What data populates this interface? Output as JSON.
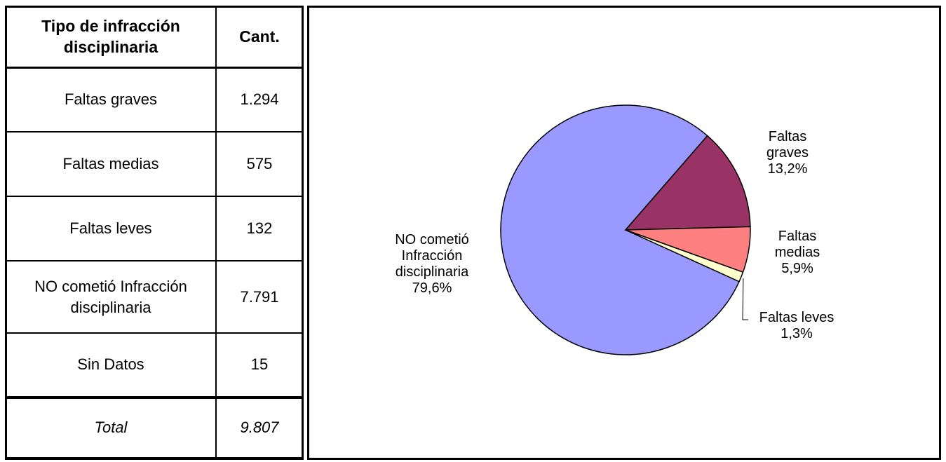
{
  "table": {
    "headers": [
      "Tipo de infracción disciplinaria",
      "Cant."
    ],
    "rows": [
      {
        "label": "Faltas graves",
        "value": "1.294"
      },
      {
        "label": "Faltas medias",
        "value": "575"
      },
      {
        "label": "Faltas leves",
        "value": "132"
      },
      {
        "label": "NO cometió Infracción disciplinaria",
        "value": "7.791"
      },
      {
        "label": "Sin Datos",
        "value": "15"
      }
    ],
    "total": {
      "label": "Total",
      "value": "9.807"
    }
  },
  "chart_data": {
    "type": "pie",
    "slices": [
      {
        "label_lines": [
          "NO cometió",
          "Infracción",
          "disciplinaria"
        ],
        "percent_label": "79,6%",
        "percent": 79.6,
        "color": "#9999FF"
      },
      {
        "label_lines": [
          "Faltas",
          "graves"
        ],
        "percent_label": "13,2%",
        "percent": 13.2,
        "color": "#993366"
      },
      {
        "label_lines": [
          "Faltas",
          "medias"
        ],
        "percent_label": "5,9%",
        "percent": 5.9,
        "color": "#FF8080"
      },
      {
        "label_lines": [
          "Faltas leves"
        ],
        "percent_label": "1,3%",
        "percent": 1.3,
        "color": "#FFFFCC"
      }
    ]
  }
}
